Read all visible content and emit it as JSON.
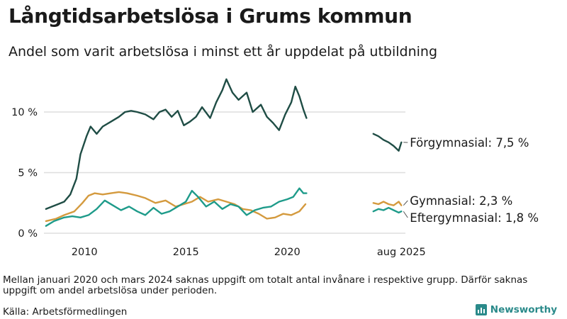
{
  "header": {
    "title": "Långtidsarbetslösa i Grums kommun",
    "subtitle": "Andel som varit arbetslösa i minst ett år uppdelat på utbildning"
  },
  "footer": {
    "note": "Mellan januari 2020 och mars 2024 saknas uppgift om totalt antal invånare i respektive grupp. Därför saknas uppgift om andel arbetslösa under perioden.",
    "source": "Källa: Arbetsförmedlingen",
    "logo_text": "Newsworthy"
  },
  "chart_data": {
    "type": "line",
    "title": "",
    "xlabel": "",
    "ylabel": "",
    "ylim": [
      0,
      13
    ],
    "y_ticks": [
      0,
      5,
      10
    ],
    "y_tick_labels": [
      "0 %",
      "5 %",
      "10 %"
    ],
    "x_ticks": [
      2010,
      2015,
      2020
    ],
    "x_tick_labels": [
      "2010",
      "2015",
      "2020"
    ],
    "x_extra_label": "aug 2025",
    "grid": "horizontal",
    "series": [
      {
        "name": "Förgymnasial",
        "color": "#1f4d45",
        "end_label": "Förgymnasial: 7,5 %",
        "segments": [
          {
            "x": [
              2008.1,
              2008.4,
              2008.7,
              2009.0,
              2009.3,
              2009.6,
              2009.8,
              2010.1,
              2010.3,
              2010.6,
              2010.9,
              2011.3,
              2011.7,
              2012.0,
              2012.3,
              2012.6,
              2013.0,
              2013.4,
              2013.7,
              2014.0,
              2014.3,
              2014.6,
              2014.9,
              2015.2,
              2015.5,
              2015.8,
              2016.2,
              2016.5,
              2016.8,
              2017.0,
              2017.3,
              2017.6,
              2018.0,
              2018.3,
              2018.7,
              2019.0,
              2019.3,
              2019.6,
              2019.9,
              2020.2,
              2020.4,
              2020.6,
              2020.8,
              2020.95
            ],
            "y": [
              2.0,
              2.2,
              2.4,
              2.6,
              3.2,
              4.5,
              6.5,
              8.0,
              8.8,
              8.2,
              8.8,
              9.2,
              9.6,
              10.0,
              10.1,
              10.0,
              9.8,
              9.4,
              10.0,
              10.2,
              9.6,
              10.1,
              8.9,
              9.2,
              9.6,
              10.4,
              9.5,
              10.8,
              11.8,
              12.7,
              11.6,
              11.0,
              11.6,
              10.0,
              10.6,
              9.6,
              9.1,
              8.5,
              9.8,
              10.8,
              12.1,
              11.3,
              10.2,
              9.5
            ]
          },
          {
            "x": [
              2024.25,
              2024.5,
              2024.75,
              2025.0,
              2025.25,
              2025.5,
              2025.63
            ],
            "y": [
              8.2,
              8.0,
              7.7,
              7.5,
              7.2,
              6.8,
              7.5
            ]
          }
        ]
      },
      {
        "name": "Gymnasial",
        "color": "#d49a3e",
        "end_label": "Gymnasial: 2,3 %",
        "segments": [
          {
            "x": [
              2008.1,
              2008.6,
              2009.0,
              2009.5,
              2009.9,
              2010.2,
              2010.5,
              2010.9,
              2011.3,
              2011.7,
              2012.1,
              2012.6,
              2013.0,
              2013.5,
              2014.0,
              2014.5,
              2014.9,
              2015.3,
              2015.7,
              2016.1,
              2016.6,
              2017.0,
              2017.4,
              2017.8,
              2018.2,
              2018.6,
              2019.0,
              2019.4,
              2019.8,
              2020.2,
              2020.6,
              2020.9
            ],
            "y": [
              1.0,
              1.2,
              1.5,
              1.8,
              2.5,
              3.1,
              3.3,
              3.2,
              3.3,
              3.4,
              3.3,
              3.1,
              2.9,
              2.5,
              2.7,
              2.2,
              2.4,
              2.6,
              3.0,
              2.6,
              2.8,
              2.6,
              2.4,
              2.0,
              1.9,
              1.6,
              1.2,
              1.3,
              1.6,
              1.5,
              1.8,
              2.4
            ]
          },
          {
            "x": [
              2024.25,
              2024.5,
              2024.75,
              2025.0,
              2025.25,
              2025.5,
              2025.63
            ],
            "y": [
              2.5,
              2.4,
              2.6,
              2.4,
              2.3,
              2.6,
              2.3
            ]
          }
        ]
      },
      {
        "name": "Eftergymnasial",
        "color": "#1e9b8a",
        "end_label": "Eftergymnasial: 1,8 %",
        "segments": [
          {
            "x": [
              2008.1,
              2008.5,
              2009.0,
              2009.4,
              2009.8,
              2010.2,
              2010.6,
              2011.0,
              2011.4,
              2011.8,
              2012.2,
              2012.6,
              2013.0,
              2013.4,
              2013.8,
              2014.2,
              2014.6,
              2015.0,
              2015.3,
              2015.6,
              2016.0,
              2016.4,
              2016.8,
              2017.2,
              2017.6,
              2018.0,
              2018.4,
              2018.8,
              2019.2,
              2019.6,
              2020.0,
              2020.3,
              2020.6,
              2020.8,
              2020.95
            ],
            "y": [
              0.6,
              1.0,
              1.3,
              1.4,
              1.3,
              1.5,
              2.0,
              2.7,
              2.3,
              1.9,
              2.2,
              1.8,
              1.5,
              2.1,
              1.6,
              1.8,
              2.2,
              2.6,
              3.5,
              3.0,
              2.2,
              2.6,
              2.0,
              2.4,
              2.2,
              1.5,
              1.9,
              2.1,
              2.2,
              2.6,
              2.8,
              3.0,
              3.7,
              3.3,
              3.3
            ]
          },
          {
            "x": [
              2024.25,
              2024.5,
              2024.75,
              2025.0,
              2025.25,
              2025.5,
              2025.63
            ],
            "y": [
              1.8,
              2.0,
              1.9,
              2.1,
              1.9,
              1.7,
              1.8
            ]
          }
        ]
      }
    ]
  }
}
